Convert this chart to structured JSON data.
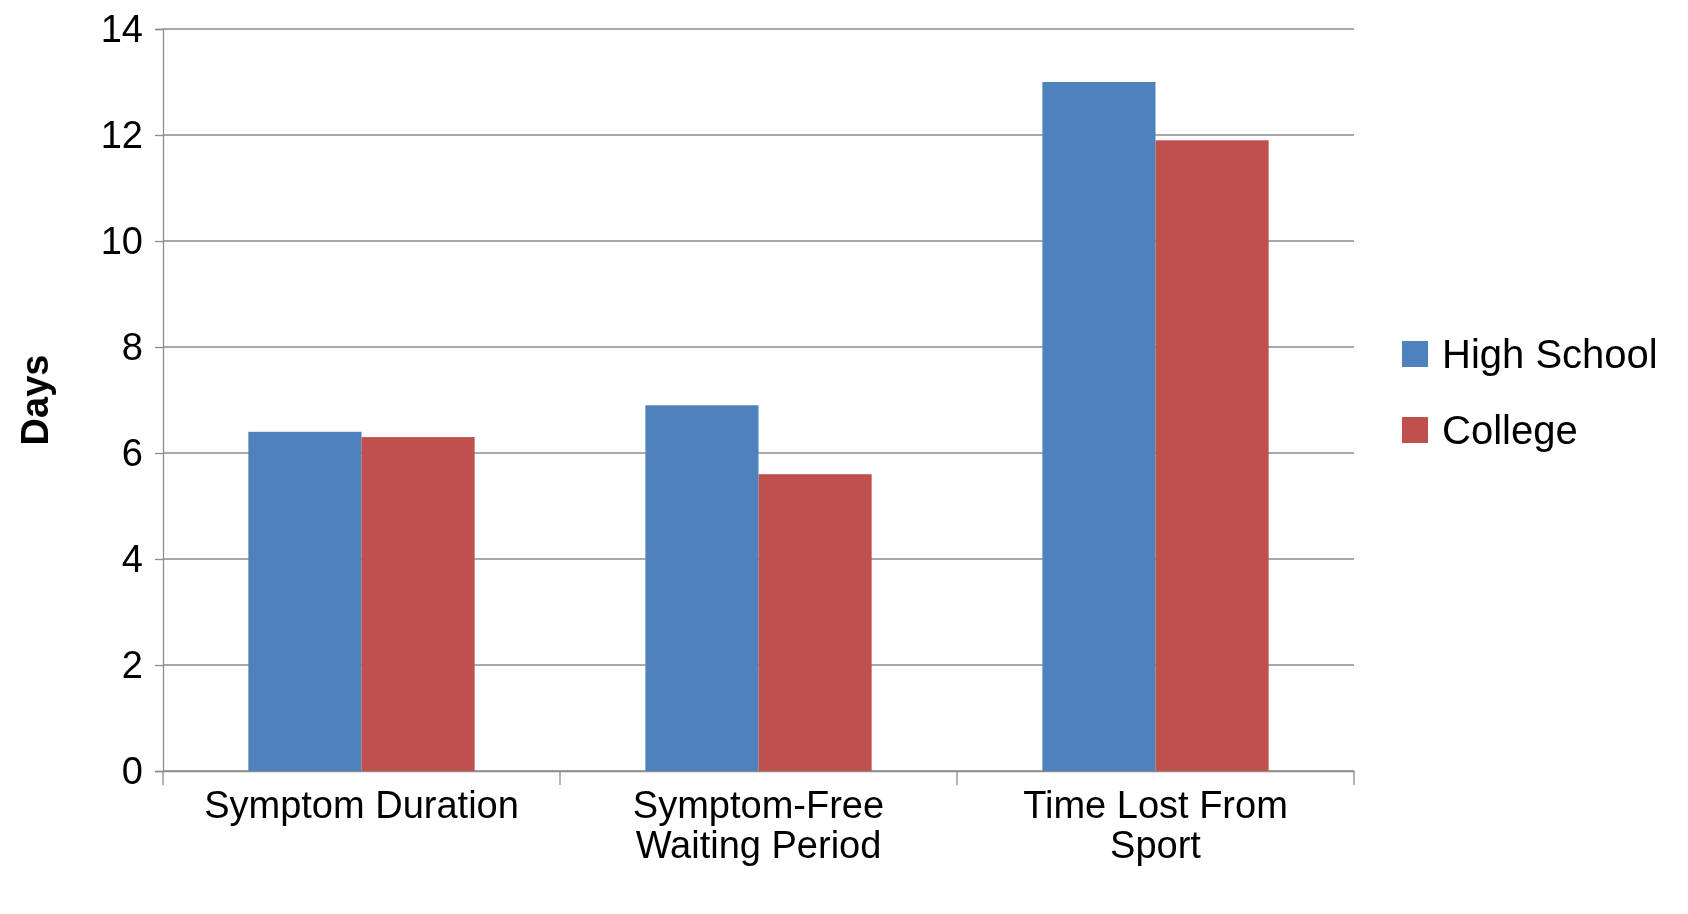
{
  "chart_data": {
    "type": "bar",
    "ylabel": "Days",
    "categories": [
      "Symptom Duration",
      "Symptom-Free Waiting Period",
      "Time Lost From Sport"
    ],
    "series": [
      {
        "name": "High School",
        "color": "#4f81bd",
        "values": [
          6.4,
          6.9,
          13.0
        ]
      },
      {
        "name": "College",
        "color": "#c0504d",
        "values": [
          6.3,
          5.6,
          11.9
        ]
      }
    ],
    "ylim": [
      0,
      14
    ],
    "yticks": [
      0,
      2,
      4,
      6,
      8,
      10,
      12,
      14
    ],
    "grid": "y",
    "legend": "right"
  }
}
